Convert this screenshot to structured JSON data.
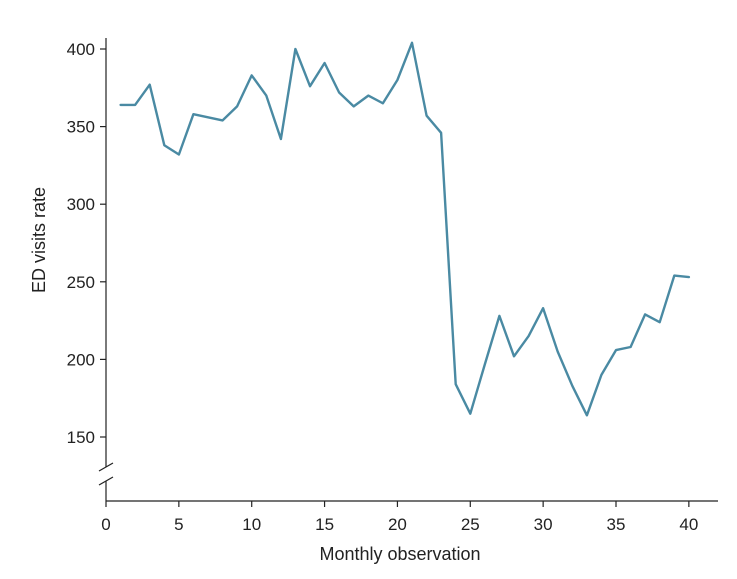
{
  "chart_data": {
    "type": "line",
    "xlabel": "Monthly observation",
    "ylabel": "ED visits rate",
    "xlim": [
      0,
      42
    ],
    "ylim": [
      150,
      410
    ],
    "x_ticks": [
      0,
      5,
      10,
      15,
      20,
      25,
      30,
      35,
      40
    ],
    "y_ticks": [
      150,
      200,
      250,
      300,
      350,
      400
    ],
    "y_axis_break": true,
    "grid": false,
    "series": [
      {
        "color": "#4a8aa3",
        "x": [
          1,
          2,
          3,
          4,
          5,
          6,
          7,
          8,
          9,
          10,
          11,
          12,
          13,
          14,
          15,
          16,
          17,
          18,
          19,
          20,
          21,
          22,
          23,
          24,
          25,
          26,
          27,
          28,
          29,
          30,
          31,
          32,
          33,
          34,
          35,
          36,
          37,
          38,
          39,
          40
        ],
        "y": [
          364,
          364,
          377,
          338,
          332,
          358,
          356,
          354,
          363,
          383,
          370,
          342,
          400,
          376,
          391,
          372,
          363,
          370,
          365,
          380,
          404,
          357,
          346,
          184,
          165,
          197,
          228,
          202,
          215,
          233,
          205,
          183,
          164,
          190,
          206,
          208,
          229,
          224,
          254,
          253
        ]
      }
    ]
  }
}
